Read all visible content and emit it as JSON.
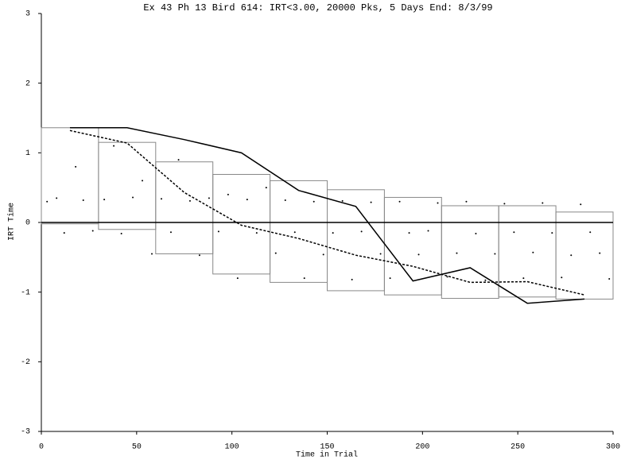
{
  "chart_data": {
    "type": "scatter",
    "title": "Ex 43 Ph 13 Bird 614: IRT<3.00, 20000 Pks, 5 Days End: 8/3/99",
    "x_label": "Time in Trial",
    "y_label": "IRT Time",
    "xlim": [
      0,
      300
    ],
    "xticks": [
      0,
      50,
      100,
      150,
      200,
      250,
      300
    ],
    "ylim": [
      -3,
      3
    ],
    "yticks": [
      -3,
      -2,
      -1,
      0,
      1,
      2,
      3
    ],
    "grid": false,
    "color": "#000000",
    "hline": 0,
    "x": [
      3,
      8,
      12,
      18,
      22,
      27,
      33,
      38,
      42,
      48,
      53,
      58,
      63,
      68,
      72,
      78,
      83,
      88,
      93,
      98,
      103,
      108,
      113,
      118,
      123,
      128,
      133,
      138,
      143,
      148,
      153,
      158,
      163,
      168,
      173,
      178,
      183,
      188,
      193,
      198,
      203,
      208,
      213,
      218,
      223,
      228,
      233,
      238,
      243,
      248,
      253,
      258,
      263,
      268,
      273,
      278,
      283,
      288,
      293,
      298
    ],
    "values": [
      0.3,
      0.35,
      -0.15,
      0.8,
      0.32,
      -0.12,
      0.33,
      1.1,
      -0.16,
      0.36,
      0.6,
      -0.45,
      0.34,
      -0.14,
      0.9,
      0.31,
      -0.47,
      0.35,
      -0.13,
      0.4,
      -0.8,
      0.33,
      -0.15,
      0.5,
      -0.44,
      0.32,
      -0.14,
      -0.8,
      0.3,
      -0.46,
      -0.15,
      0.31,
      -0.82,
      -0.13,
      0.29,
      -0.45,
      -0.8,
      0.3,
      -0.15,
      -0.46,
      -0.12,
      0.28,
      -0.78,
      -0.44,
      0.3,
      -0.16,
      -0.83,
      -0.45,
      0.27,
      -0.14,
      -0.8,
      -0.43,
      0.28,
      -0.15,
      -0.79,
      -0.47,
      0.26,
      -0.14,
      -0.44,
      -0.81
    ],
    "box_edges": [
      0,
      30,
      60,
      90,
      120,
      150,
      180,
      210,
      240,
      270,
      300
    ],
    "box_tops": [
      1.36,
      1.15,
      0.87,
      0.69,
      0.6,
      0.47,
      0.36,
      0.24,
      0.24,
      0.15
    ],
    "box_bottoms": [
      -0.02,
      -0.1,
      -0.45,
      -0.74,
      -0.86,
      -0.98,
      -1.04,
      -1.09,
      -1.07,
      -1.1
    ],
    "box_color": "#888888",
    "lines": [
      {
        "style": "solid",
        "color": "#000000",
        "x": [
          15,
          45,
          75,
          105,
          135,
          165,
          195,
          225,
          255,
          285
        ],
        "values": [
          1.36,
          1.36,
          1.19,
          1.0,
          0.46,
          0.23,
          -0.84,
          -0.65,
          -1.16,
          -1.1
        ]
      },
      {
        "style": "dashed",
        "color": "#000000",
        "x": [
          15,
          45,
          75,
          105,
          135,
          165,
          195,
          225,
          255,
          285
        ],
        "values": [
          1.32,
          1.14,
          0.43,
          -0.04,
          -0.23,
          -0.47,
          -0.63,
          -0.86,
          -0.85,
          -1.04
        ]
      }
    ]
  }
}
